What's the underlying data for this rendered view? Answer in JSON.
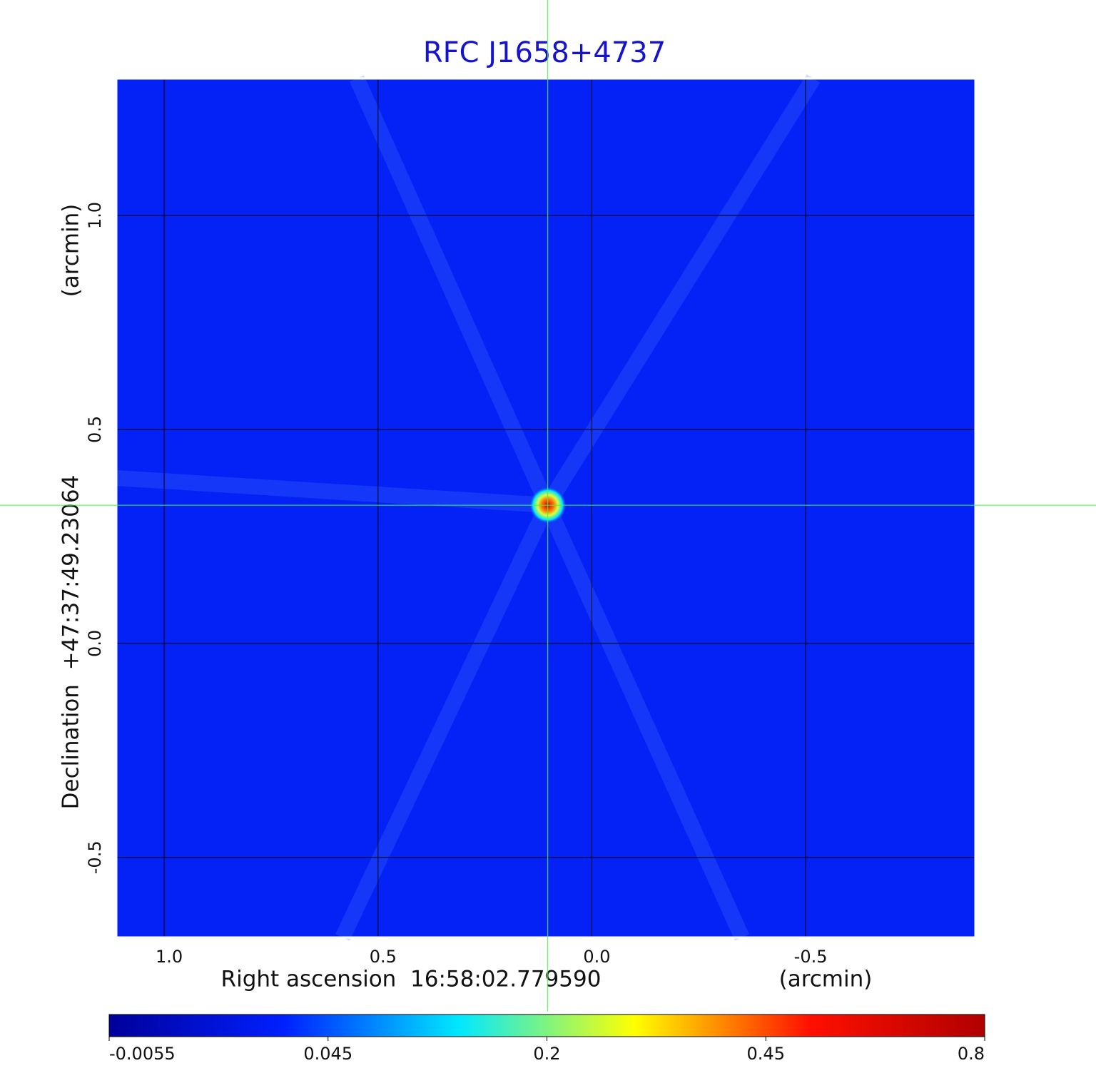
{
  "chart_data": {
    "type": "image",
    "title": "RFC J1658+4737",
    "xlabel": "Right ascension  16:58:02.779590",
    "xunit": "(arcmin)",
    "ylabel": "Declination  +47:37:49.23064",
    "yunit": "(arcmin)",
    "xlim": [
      1.112,
      -0.897
    ],
    "ylim": [
      -0.687,
      1.32
    ],
    "xticks": [
      {
        "value": 1,
        "label": "1.0"
      },
      0.5,
      {
        "value": 0,
        "label": "0.0"
      },
      -0.5
    ],
    "yticks": [
      -0.5,
      {
        "value": 0,
        "label": "0.0"
      },
      0.5,
      {
        "value": 1,
        "label": "1.0"
      }
    ],
    "grid": true,
    "crosshair": {
      "x": 0.103,
      "y": 0.323
    },
    "colorbar": {
      "lim": [
        -0.0055,
        0.8
      ],
      "ticks": [
        -0.0055,
        0.045,
        0.2,
        0.45,
        0.8
      ],
      "colormap": [
        "#00009a",
        "#0020ff",
        "#00e8ff",
        "#ffff00",
        "#ff1000",
        "#b00000"
      ]
    }
  }
}
